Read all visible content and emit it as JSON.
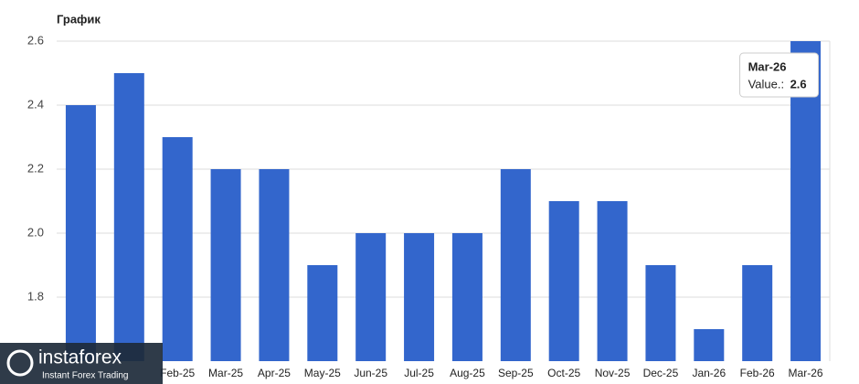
{
  "chart_data": {
    "type": "bar",
    "title": "График",
    "categories": [
      null,
      null,
      "Feb-25",
      "Mar-25",
      "Apr-25",
      "May-25",
      "Jun-25",
      "Jul-25",
      "Aug-25",
      "Sep-25",
      "Oct-25",
      "Nov-25",
      "Dec-25",
      "Jan-26",
      "Feb-26",
      "Mar-26"
    ],
    "values": [
      2.4,
      2.5,
      2.3,
      2.2,
      2.2,
      1.9,
      2.0,
      2.0,
      2.0,
      2.2,
      2.1,
      2.1,
      1.9,
      1.7,
      1.9,
      2.6
    ],
    "color": "#3366cc",
    "ylim": [
      1.6,
      2.6
    ],
    "yticks": [
      {
        "value": 1.8,
        "label": "1.8"
      },
      {
        "value": 2.0,
        "label": "2.0"
      },
      {
        "value": 2.2,
        "label": "2.2"
      },
      {
        "value": 2.4,
        "label": "2.4"
      },
      {
        "value": 2.6,
        "label": "2.6"
      }
    ],
    "grid": true,
    "tooltip": {
      "index": 15,
      "label": "Value.:"
    }
  },
  "watermark": {
    "brand": "instaforex",
    "tagline": "Instant Forex Trading"
  }
}
